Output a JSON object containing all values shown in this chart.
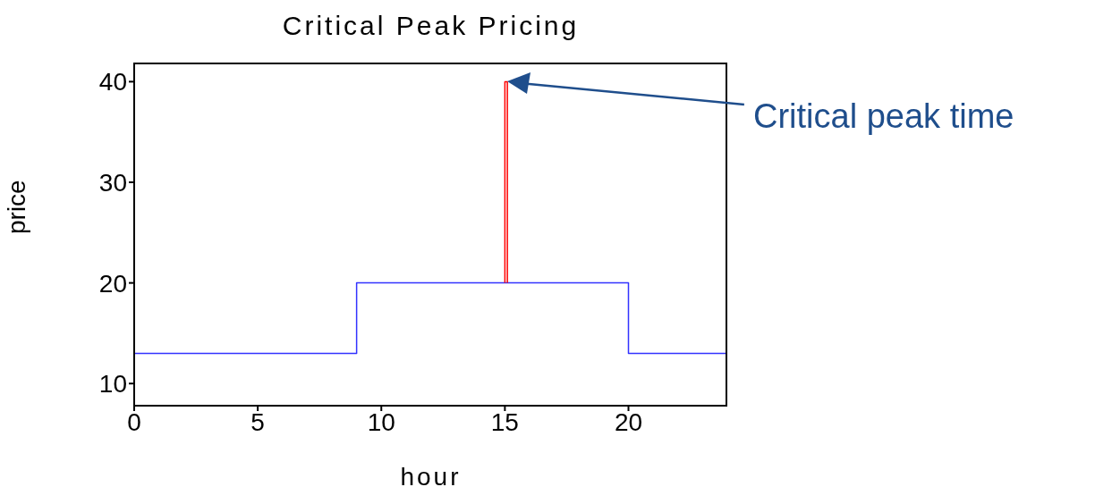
{
  "chart_data": {
    "type": "line",
    "title": "Critical Peak Pricing",
    "xlabel": "hour",
    "ylabel": "price",
    "xlim": [
      0,
      24
    ],
    "xticks": [
      0,
      5,
      10,
      15,
      20
    ],
    "ylim": [
      7.8,
      41.9
    ],
    "yticks": [
      10,
      20,
      30,
      40
    ],
    "grid": false,
    "legend": false,
    "marker": "none",
    "series": [
      {
        "type": "step",
        "color": "#3333ff",
        "x": [
          0,
          9,
          20,
          24
        ],
        "values": [
          13,
          20,
          13,
          13
        ]
      },
      {
        "type": "line",
        "color": "#ff0000",
        "x": [
          15,
          15,
          15.1,
          15.1
        ],
        "values": [
          20,
          40,
          40,
          20
        ]
      }
    ],
    "annotations": [
      "Critical peak time"
    ]
  }
}
